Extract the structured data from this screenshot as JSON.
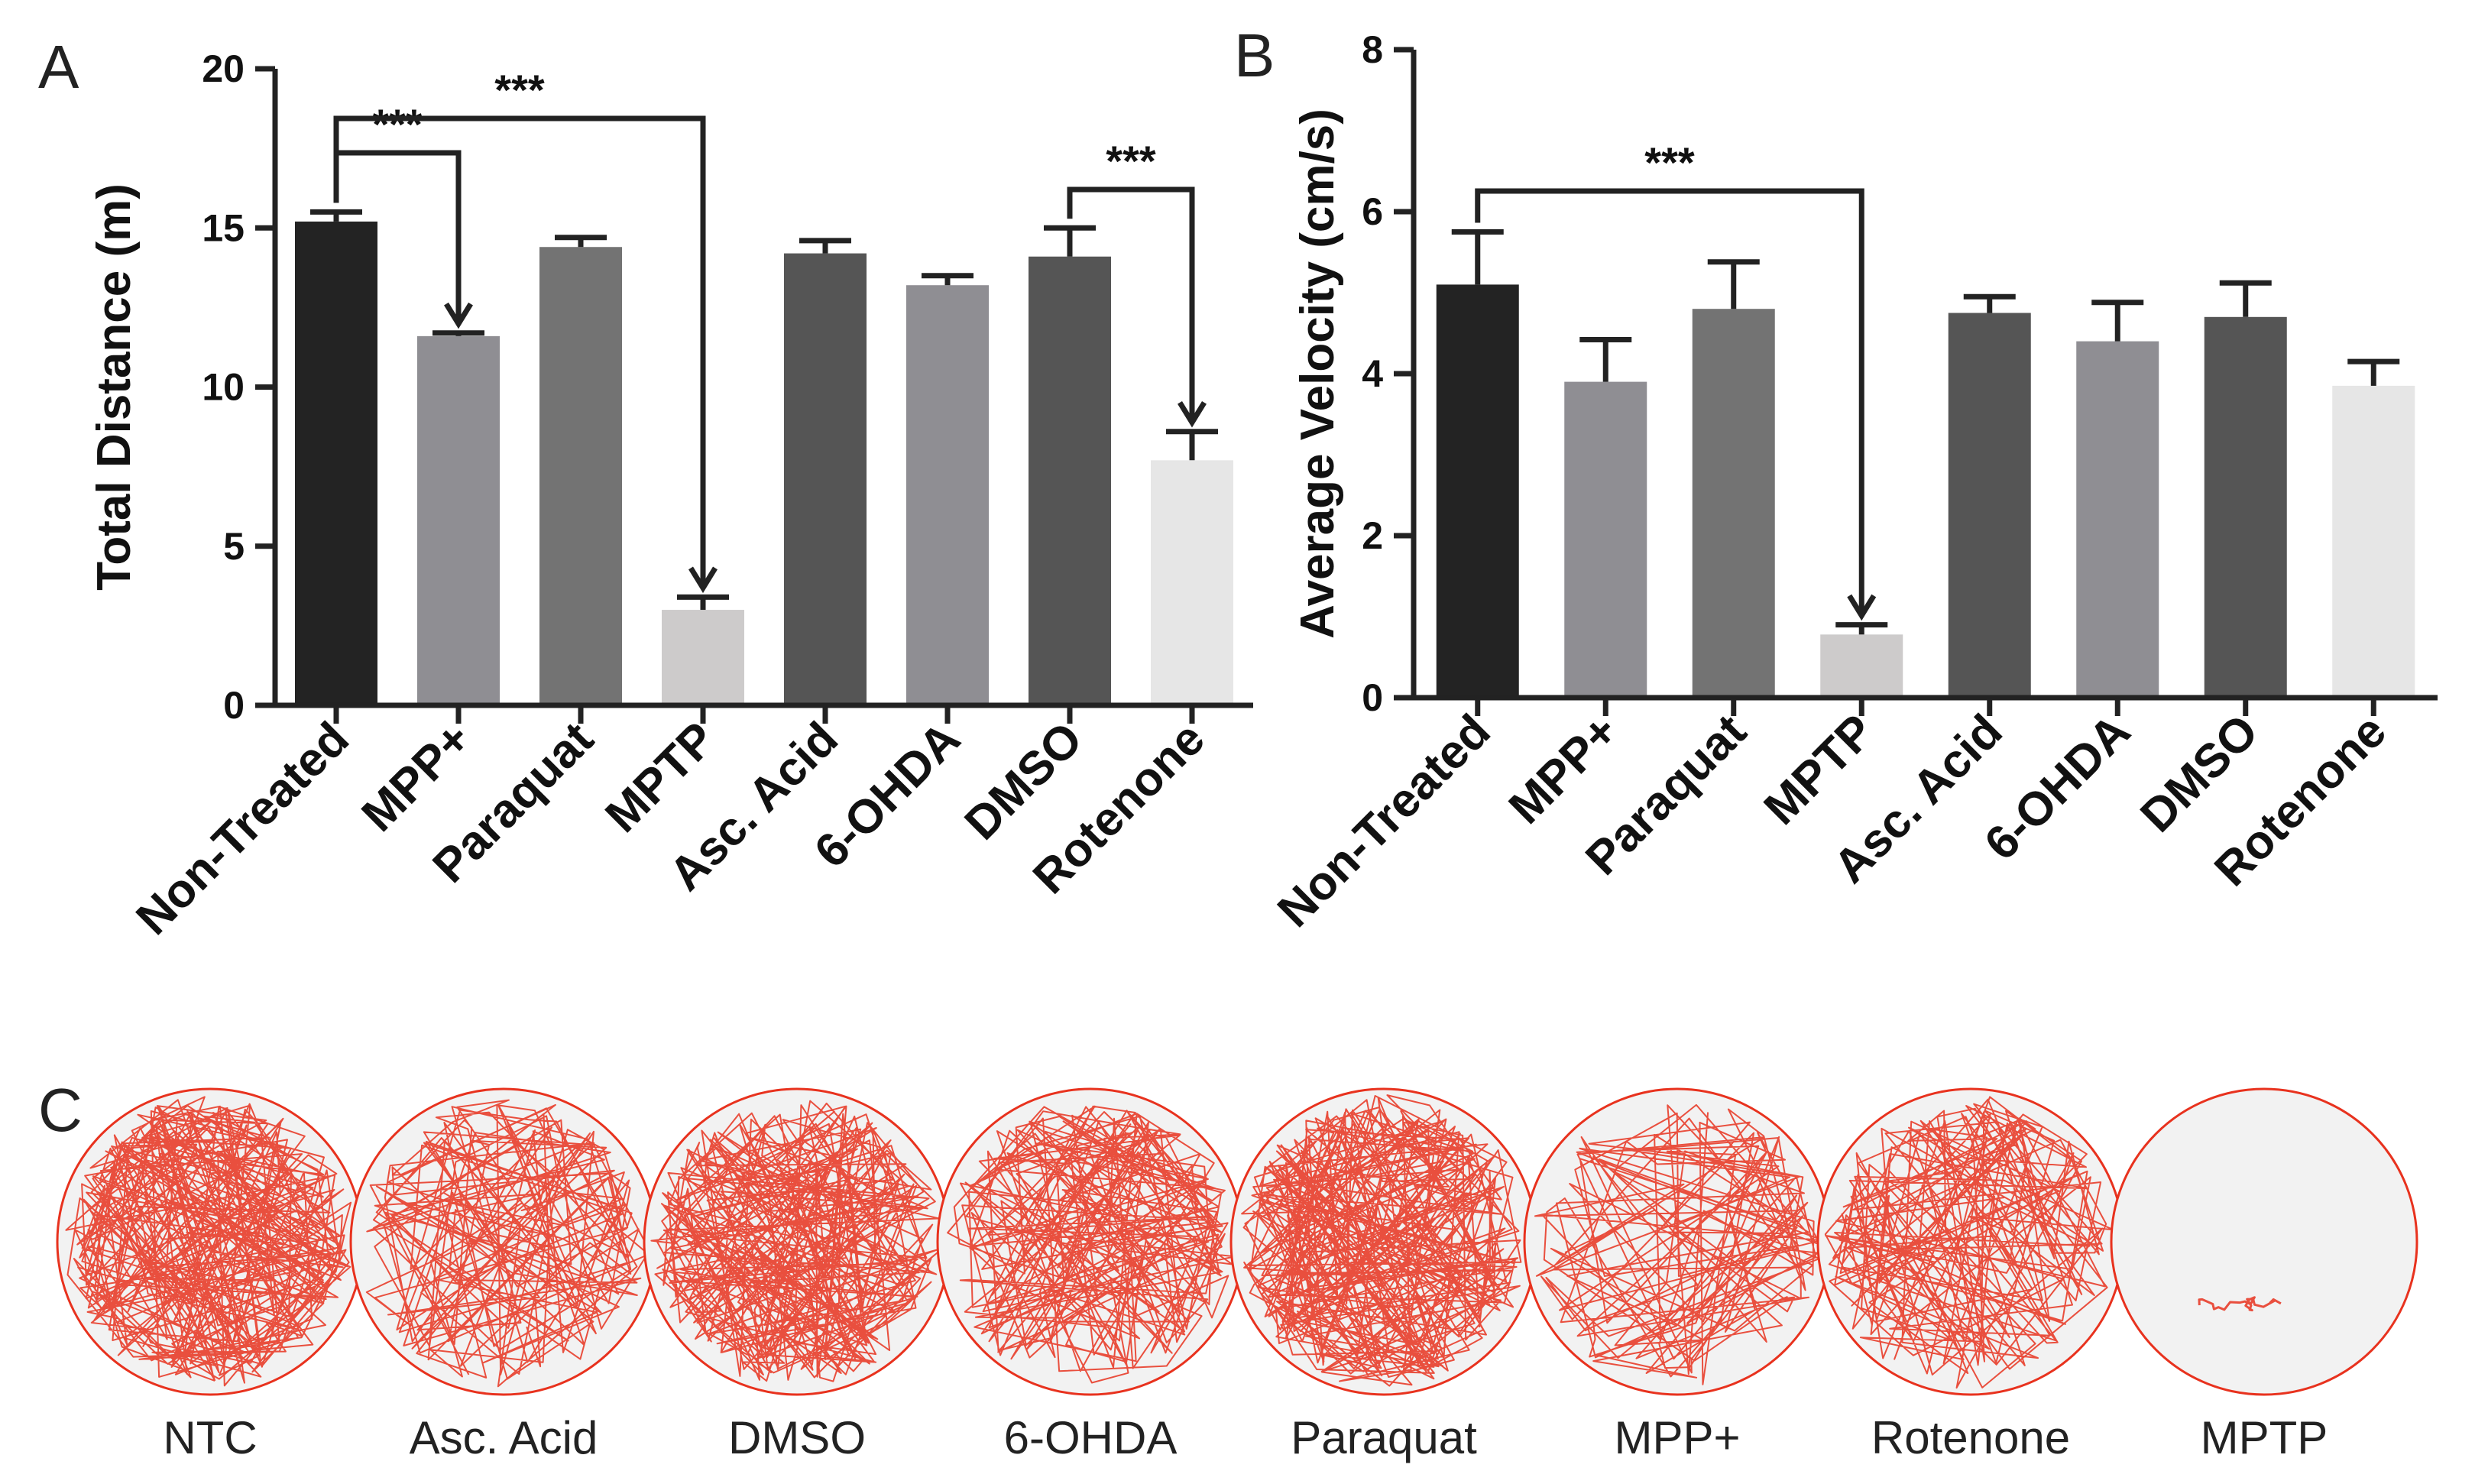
{
  "chart_data": [
    {
      "type": "bar",
      "panel": "A",
      "title": "",
      "xlabel": "",
      "ylabel": "Total Distance (m)",
      "ylim": [
        0,
        20
      ],
      "yticks": [
        "0",
        "5",
        "10",
        "15",
        "20"
      ],
      "categories": [
        "Non-Treated",
        "MPP+",
        "Paraquat",
        "MPTP",
        "Asc. Acid",
        "6-OHDA",
        "DMSO",
        "Rotenone"
      ],
      "values": [
        15.2,
        11.6,
        14.4,
        3.0,
        14.2,
        13.2,
        14.1,
        7.7
      ],
      "errors": [
        0.3,
        0.1,
        0.3,
        0.4,
        0.4,
        0.3,
        0.9,
        0.9
      ],
      "colors": [
        "#232323",
        "#8f8e93",
        "#737373",
        "#cdcbcb",
        "#555555",
        "#8f8e93",
        "#555555",
        "#e6e6e6"
      ],
      "significance": [
        {
          "from": "Non-Treated",
          "to": "MPP+",
          "label": "***"
        },
        {
          "from": "Non-Treated",
          "to": "MPTP",
          "label": "***"
        },
        {
          "from": "DMSO",
          "to": "Rotenone",
          "label": "***"
        }
      ]
    },
    {
      "type": "bar",
      "panel": "B",
      "title": "",
      "xlabel": "",
      "ylabel": "Average Velocity (cm/s)",
      "ylim": [
        0,
        8
      ],
      "yticks": [
        "0",
        "2",
        "4",
        "6",
        "8"
      ],
      "categories": [
        "Non-Treated",
        "MPP+",
        "Paraquat",
        "MPTP",
        "Asc. Acid",
        "6-OHDA",
        "DMSO",
        "Rotenone"
      ],
      "values": [
        5.1,
        3.9,
        4.8,
        0.78,
        4.75,
        4.4,
        4.7,
        3.85
      ],
      "errors": [
        0.65,
        0.52,
        0.58,
        0.12,
        0.2,
        0.48,
        0.42,
        0.3
      ],
      "colors": [
        "#232323",
        "#8f8e93",
        "#737373",
        "#cdcbcb",
        "#555555",
        "#8f8e93",
        "#555555",
        "#e6e6e6"
      ],
      "significance": [
        {
          "from": "Non-Treated",
          "to": "MPTP",
          "label": "***"
        }
      ]
    }
  ],
  "tracks": {
    "panel": "C",
    "labels": [
      "NTC",
      "Asc. Acid",
      "DMSO",
      "6-OHDA",
      "Paraquat",
      "MPP+",
      "Rotenone",
      "MPTP"
    ],
    "activity": [
      0.95,
      0.45,
      0.85,
      0.6,
      0.98,
      0.3,
      0.5,
      0.04
    ],
    "track_color": "#e8321e",
    "arena_fill": "#f2f2f2"
  }
}
